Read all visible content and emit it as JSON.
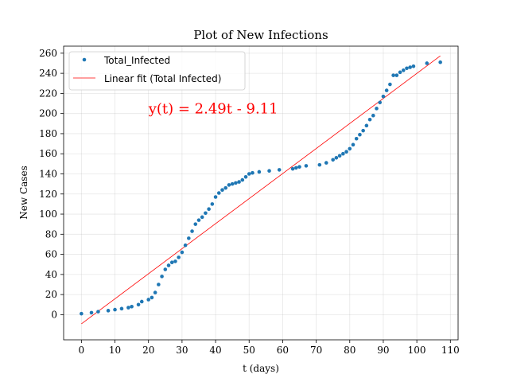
{
  "chart_data": {
    "type": "scatter",
    "title": "Plot of New Infections",
    "xlabel": "t (days)",
    "ylabel": "New Cases",
    "xlim": [
      -5.3,
      112.3
    ],
    "ylim": [
      -25,
      267
    ],
    "xticks": [
      0,
      10,
      20,
      30,
      40,
      50,
      60,
      70,
      80,
      90,
      100,
      110
    ],
    "yticks": [
      0,
      20,
      40,
      60,
      80,
      100,
      120,
      140,
      160,
      180,
      200,
      220,
      240,
      260
    ],
    "grid": true,
    "legend_position": "top-left",
    "annotation": {
      "text": "y(t) = 2.49t - 9.11",
      "x": 20,
      "y": 200,
      "color": "#ff0000"
    },
    "series": [
      {
        "name": "Total_Infected",
        "kind": "scatter",
        "color": "#1f77b4",
        "x": [
          0,
          3,
          5,
          8,
          10,
          12,
          14,
          15,
          17,
          18,
          20,
          21,
          22,
          23,
          24,
          25,
          26,
          27,
          28,
          29,
          30,
          31,
          32,
          33,
          34,
          35,
          36,
          37,
          38,
          39,
          40,
          41,
          42,
          43,
          44,
          45,
          46,
          47,
          48,
          49,
          50,
          51,
          53,
          56,
          59,
          63,
          64,
          65,
          67,
          71,
          73,
          75,
          76,
          77,
          78,
          79,
          80,
          81,
          82,
          83,
          84,
          85,
          86,
          87,
          88,
          89,
          90,
          91,
          92,
          93,
          94,
          95,
          96,
          97,
          98,
          99,
          103,
          107
        ],
        "y": [
          1,
          2,
          3,
          4,
          5,
          6,
          7,
          8,
          10,
          13,
          15,
          17,
          22,
          30,
          38,
          45,
          49,
          52,
          53,
          57,
          62,
          69,
          76,
          83,
          90,
          94,
          97,
          101,
          105,
          110,
          117,
          121,
          124,
          126,
          129,
          130,
          131,
          132,
          134,
          137,
          140,
          141,
          142,
          143,
          144,
          145,
          146,
          147,
          148,
          149,
          151,
          154,
          156,
          158,
          160,
          162,
          165,
          169,
          175,
          179,
          183,
          188,
          194,
          198,
          205,
          211,
          217,
          223,
          229,
          238,
          238,
          241,
          243,
          245,
          246,
          247,
          250,
          251
        ]
      },
      {
        "name": "Linear fit (Total Infected)",
        "kind": "line",
        "color": "#ff0000",
        "x": [
          0,
          107
        ],
        "y": [
          -9.11,
          257.32
        ]
      }
    ]
  }
}
